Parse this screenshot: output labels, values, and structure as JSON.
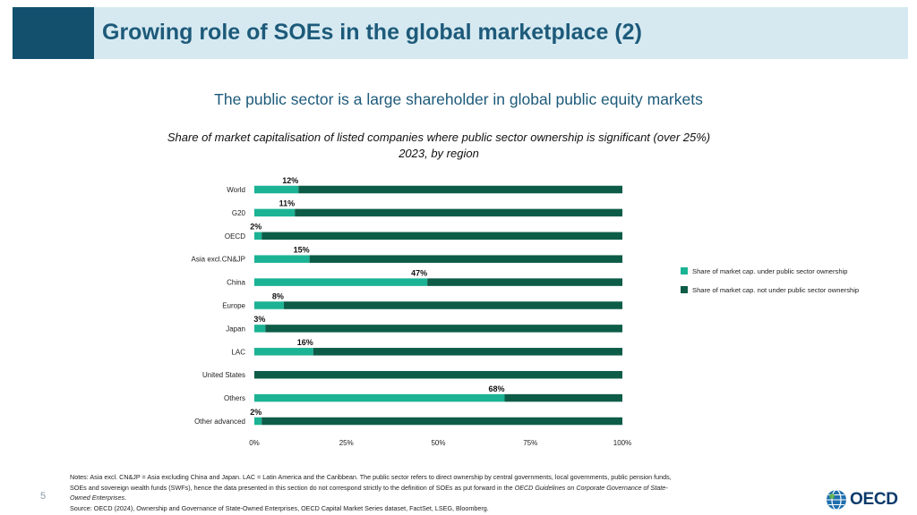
{
  "header": {
    "title": "Growing role of SOEs in the global marketplace (2)"
  },
  "subtitle": "The public sector is a large shareholder in global public equity markets",
  "chart_title": {
    "line1": "Share of market capitalisation of listed companies where public sector ownership is significant (over 25%)",
    "line2": "2023, by region"
  },
  "colors": {
    "public": "#1bb394",
    "not_public": "#0d5c48",
    "header_dark": "#12506e",
    "header_light": "#d6e9f1"
  },
  "chart_data": {
    "type": "bar",
    "orientation": "horizontal",
    "stacked": true,
    "title": "Share of market capitalisation of listed companies where public sector ownership is significant (over 25%), 2023, by region",
    "categories": [
      "World",
      "G20",
      "OECD",
      "Asia excl.CN&JP",
      "China",
      "Europe",
      "Japan",
      "LAC",
      "United States",
      "Others",
      "Other advanced"
    ],
    "series": [
      {
        "name": "Share of market cap. under public sector ownership",
        "values": [
          12,
          11,
          2,
          15,
          47,
          8,
          3,
          16,
          0,
          68,
          2
        ]
      },
      {
        "name": "Share of market cap. not under public sector ownership",
        "values": [
          88,
          89,
          98,
          85,
          53,
          92,
          97,
          84,
          100,
          32,
          98
        ]
      }
    ],
    "data_labels": [
      "12%",
      "11%",
      "2%",
      "15%",
      "47%",
      "8%",
      "3%",
      "16%",
      "",
      "68%",
      "2%"
    ],
    "xlim": [
      0,
      100
    ],
    "xticks": [
      0,
      25,
      50,
      75,
      100
    ],
    "xtick_labels": [
      "0%",
      "25%",
      "50%",
      "75%",
      "100%"
    ],
    "legend_position": "right"
  },
  "notes": {
    "line1": "Notes: Asia excl. CN&JP = Asia excluding China and Japan. LAC = Latin America and the Caribbean. The public sector refers to direct ownership by central governments, local governments, public pension funds,",
    "line2_pre": "SOEs and sovereign wealth funds (SWFs), hence the data presented in this section do not correspond strictly to the definition of SOEs as put forward in the ",
    "line2_italic": "OECD Guidelines on Corporate Governance of State-",
    "line3_italic": "Owned Enterprises",
    "line3_post": ".",
    "source": "Source: OECD (2024), Ownership and Governance of State-Owned Enterprises, OECD Capital Market Series dataset, FactSet, LSEG, Bloomberg."
  },
  "page_number": "5",
  "logo": {
    "text": "OECD",
    "icon": "globe-icon"
  }
}
